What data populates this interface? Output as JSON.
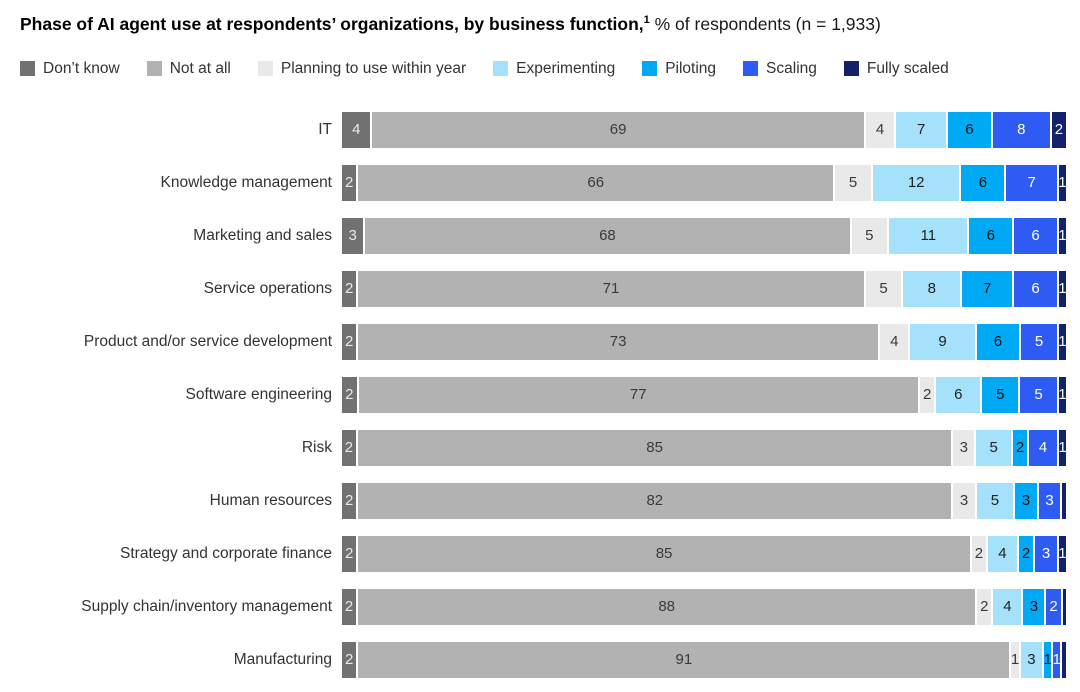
{
  "title": {
    "bold": "Phase of AI agent use at respondents’ organizations, by business function,",
    "superscript": "1",
    "regular": " % of respondents (n = 1,933)"
  },
  "chart_data": {
    "type": "bar",
    "stacked": true,
    "orientation": "horizontal",
    "unit": "% of respondents",
    "sample_note": "n = 1,933",
    "legend_position": "top",
    "categories": [
      "IT",
      "Knowledge management",
      "Marketing and sales",
      "Service operations",
      "Product and/or service development",
      "Software engineering",
      "Risk",
      "Human resources",
      "Strategy and corporate finance",
      "Supply chain/inventory management",
      "Manufacturing"
    ],
    "series": [
      {
        "name": "Don’t know",
        "color": "#717171",
        "text_color": "#e9e9e9",
        "values": [
          4,
          2,
          3,
          2,
          2,
          2,
          2,
          2,
          2,
          2,
          2
        ],
        "labels": [
          "4",
          "2",
          "3",
          "2",
          "2",
          "2",
          "2",
          "2",
          "2",
          "2",
          "2"
        ]
      },
      {
        "name": "Not at all",
        "color": "#b2b2b2",
        "text_color": "#3a3a3a",
        "values": [
          69,
          66,
          68,
          71,
          73,
          77,
          85,
          82,
          85,
          88,
          91
        ],
        "labels": [
          "69",
          "66",
          "68",
          "71",
          "73",
          "77",
          "85",
          "82",
          "85",
          "88",
          "91"
        ]
      },
      {
        "name": "Planning to use within year",
        "color": "#e9e9e9",
        "text_color": "#3a3a3a",
        "values": [
          4,
          5,
          5,
          5,
          4,
          2,
          3,
          3,
          2,
          2,
          1
        ],
        "labels": [
          "4",
          "5",
          "5",
          "5",
          "4",
          "2",
          "3",
          "3",
          "2",
          "2",
          "1"
        ]
      },
      {
        "name": "Experimenting",
        "color": "#a5e1fa",
        "text_color": "#222222",
        "values": [
          7,
          12,
          11,
          8,
          9,
          6,
          5,
          5,
          4,
          4,
          3
        ],
        "labels": [
          "7",
          "12",
          "11",
          "8",
          "9",
          "6",
          "5",
          "5",
          "4",
          "4",
          "3"
        ]
      },
      {
        "name": "Piloting",
        "color": "#00a9f4",
        "text_color": "#111111",
        "values": [
          6,
          6,
          6,
          7,
          6,
          5,
          2,
          3,
          2,
          3,
          1
        ],
        "labels": [
          "6",
          "6",
          "6",
          "7",
          "6",
          "5",
          "2",
          "3",
          "2",
          "3",
          "1"
        ]
      },
      {
        "name": "Scaling",
        "color": "#2d5bf4",
        "text_color": "#ffffff",
        "values": [
          8,
          7,
          6,
          6,
          5,
          5,
          4,
          3,
          3,
          2,
          1
        ],
        "labels": [
          "8",
          "7",
          "6",
          "6",
          "5",
          "5",
          "4",
          "3",
          "3",
          "2",
          "1"
        ]
      },
      {
        "name": "Fully scaled",
        "color": "#13206b",
        "text_color": "#ffffff",
        "values": [
          2,
          1,
          1,
          1,
          1,
          1,
          1,
          0.5,
          1,
          0.5,
          0.5
        ],
        "labels": [
          "2",
          "1",
          "1",
          "1",
          "1",
          "1",
          "1",
          "",
          "1",
          "",
          ""
        ]
      }
    ]
  }
}
